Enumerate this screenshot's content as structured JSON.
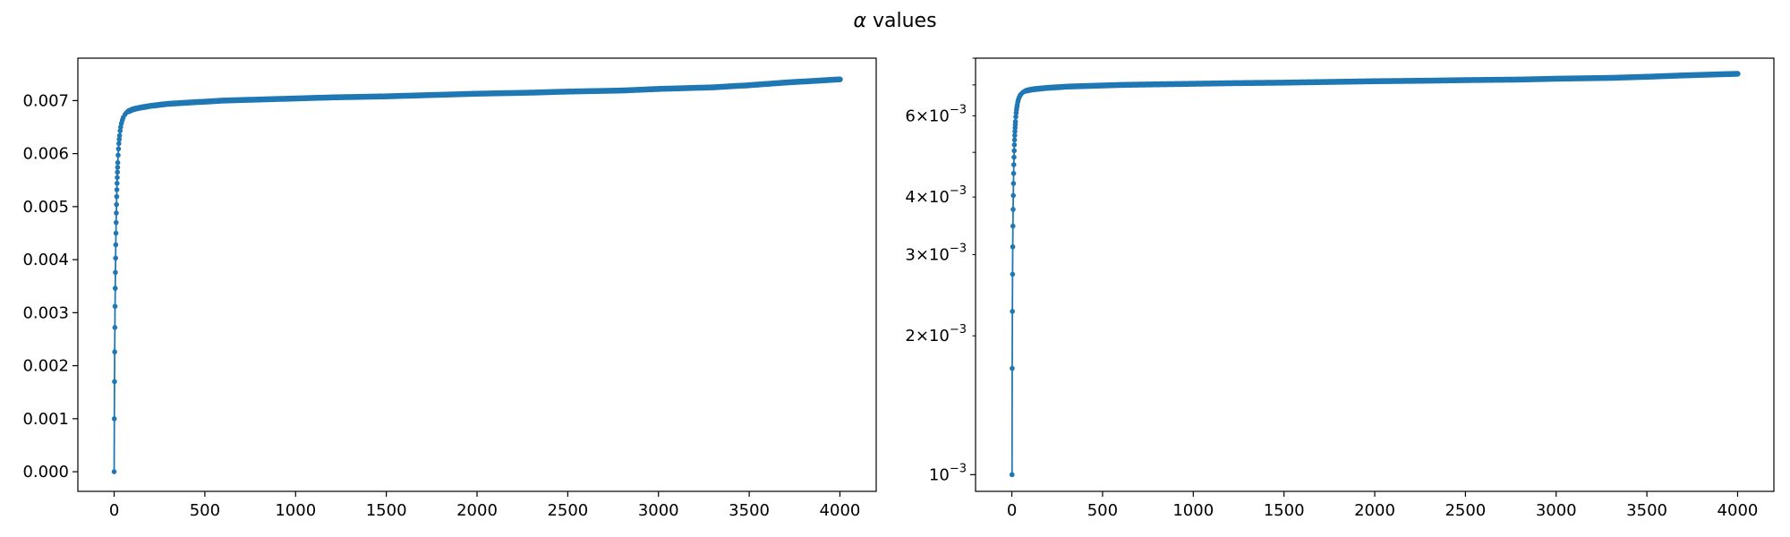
{
  "figure": {
    "title_symbol": "α",
    "title_text": " values"
  },
  "chart_data": [
    {
      "type": "line",
      "yscale": "linear",
      "xlim": [
        -200,
        4200
      ],
      "ylim": [
        -0.00037,
        0.0078
      ],
      "xticks": [
        0,
        500,
        1000,
        1500,
        2000,
        2500,
        3000,
        3500,
        4000
      ],
      "yticks": [
        0.0,
        0.001,
        0.002,
        0.003,
        0.004,
        0.005,
        0.006,
        0.007
      ],
      "ytick_labels": [
        "0.000",
        "0.001",
        "0.002",
        "0.003",
        "0.004",
        "0.005",
        "0.006",
        "0.007"
      ],
      "color": "#1f77b4",
      "marker": "dot",
      "legend": "none",
      "grid": false,
      "series": [
        {
          "x": [
            0,
            1,
            2,
            3,
            4,
            5,
            6,
            7,
            8,
            9,
            10,
            11,
            12,
            13,
            14,
            15,
            16,
            17,
            18,
            19,
            20,
            22,
            24,
            26,
            28,
            30,
            33,
            36,
            40,
            45,
            50,
            60,
            70,
            80,
            100,
            120,
            150,
            200,
            250,
            300,
            400,
            500,
            600,
            700,
            800,
            1000,
            1200,
            1500,
            1700,
            2000,
            2300,
            2500,
            2800,
            3000,
            3300,
            3500,
            3700,
            3900,
            4000
          ],
          "y": [
            0.0,
            0.001,
            0.0017,
            0.00226,
            0.00272,
            0.00312,
            0.00346,
            0.00376,
            0.00403,
            0.00428,
            0.0045,
            0.0047,
            0.00488,
            0.00504,
            0.00519,
            0.00532,
            0.00544,
            0.00555,
            0.00565,
            0.00574,
            0.00583,
            0.00597,
            0.00609,
            0.00619,
            0.00627,
            0.00634,
            0.00643,
            0.0065,
            0.00657,
            0.00663,
            0.00668,
            0.00674,
            0.00678,
            0.0068,
            0.00683,
            0.00685,
            0.00687,
            0.0069,
            0.00692,
            0.00694,
            0.00696,
            0.00698,
            0.007,
            0.00701,
            0.00702,
            0.00704,
            0.00706,
            0.00708,
            0.0071,
            0.00713,
            0.00715,
            0.00717,
            0.00719,
            0.00722,
            0.00725,
            0.00729,
            0.00734,
            0.00738,
            0.0074
          ]
        }
      ]
    },
    {
      "type": "line",
      "yscale": "log",
      "xlim": [
        -200,
        4200
      ],
      "ylim": [
        0.00092,
        0.008
      ],
      "xticks": [
        0,
        500,
        1000,
        1500,
        2000,
        2500,
        3000,
        3500,
        4000
      ],
      "yticks_major": [
        0.001
      ],
      "ytick_major_labels": [
        {
          "mant": "",
          "base": "10",
          "exp": "−3"
        }
      ],
      "yticks_minor": [
        0.002,
        0.003,
        0.004,
        0.005,
        0.006,
        0.007,
        0.008
      ],
      "ytick_minor_labels": [
        {
          "value": 0.002,
          "mant": "2",
          "base": "10",
          "exp": "−3"
        },
        {
          "value": 0.003,
          "mant": "3",
          "base": "10",
          "exp": "−3"
        },
        {
          "value": 0.004,
          "mant": "4",
          "base": "10",
          "exp": "−3"
        },
        {
          "value": 0.006,
          "mant": "6",
          "base": "10",
          "exp": "−3"
        }
      ],
      "color": "#1f77b4",
      "marker": "dot",
      "legend": "none",
      "grid": false,
      "series": [
        {
          "x": [
            1,
            2,
            3,
            4,
            5,
            6,
            7,
            8,
            9,
            10,
            11,
            12,
            13,
            14,
            15,
            16,
            17,
            18,
            19,
            20,
            22,
            24,
            26,
            28,
            30,
            33,
            36,
            40,
            45,
            50,
            60,
            70,
            80,
            100,
            120,
            150,
            200,
            250,
            300,
            400,
            500,
            600,
            700,
            800,
            1000,
            1200,
            1500,
            1700,
            2000,
            2300,
            2500,
            2800,
            3000,
            3300,
            3500,
            3700,
            3900,
            4000
          ],
          "y": [
            0.001,
            0.0017,
            0.00226,
            0.00272,
            0.00312,
            0.00346,
            0.00376,
            0.00403,
            0.00428,
            0.0045,
            0.0047,
            0.00488,
            0.00504,
            0.00519,
            0.00532,
            0.00544,
            0.00555,
            0.00565,
            0.00574,
            0.00583,
            0.00597,
            0.00609,
            0.00619,
            0.00627,
            0.00634,
            0.00643,
            0.0065,
            0.00657,
            0.00663,
            0.00668,
            0.00674,
            0.00678,
            0.0068,
            0.00683,
            0.00685,
            0.00687,
            0.0069,
            0.00692,
            0.00694,
            0.00696,
            0.00698,
            0.007,
            0.00701,
            0.00702,
            0.00704,
            0.00706,
            0.00708,
            0.0071,
            0.00713,
            0.00715,
            0.00717,
            0.00719,
            0.00722,
            0.00725,
            0.00729,
            0.00734,
            0.00738,
            0.0074
          ]
        }
      ]
    }
  ]
}
